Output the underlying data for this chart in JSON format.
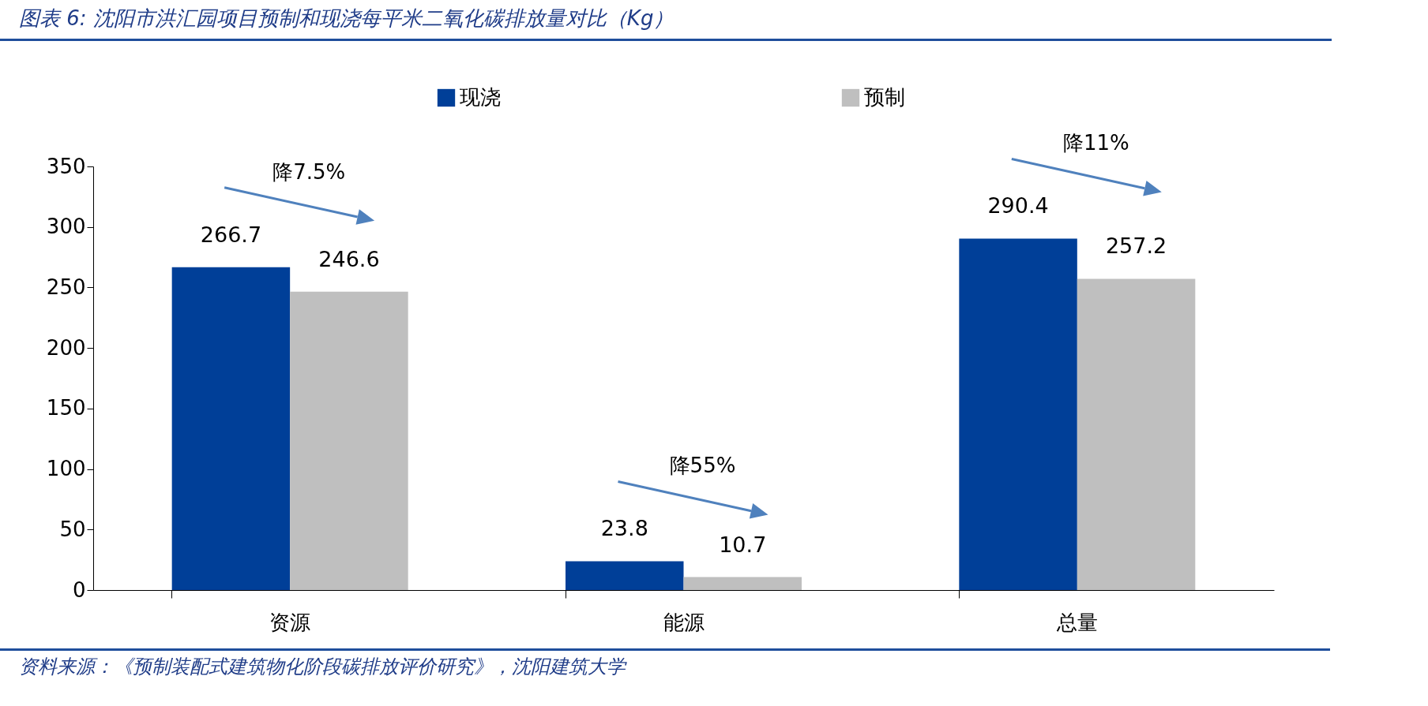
{
  "chart_data": {
    "type": "bar",
    "title": "图表 6:  沈阳市洪汇园项目预制和现浇每平米二氧化碳排放量对比（Kg）",
    "categories": [
      "资源",
      "能源",
      "总量"
    ],
    "series": [
      {
        "name": "现浇",
        "color": "#003f98",
        "values": [
          266.7,
          23.8,
          290.4
        ]
      },
      {
        "name": "预制",
        "color": "#bfbfbf",
        "values": [
          246.6,
          10.7,
          257.2
        ]
      }
    ],
    "ylim": [
      0,
      350
    ],
    "yticks": [
      0,
      50,
      100,
      150,
      200,
      250,
      300,
      350
    ],
    "grid": false,
    "legend": "top",
    "data_labels": true,
    "annotations": [
      "降7.5%",
      "降55%",
      "降11%",
      "资料来源：《预制装配式建筑物化阶段碳排放评价研究》，沈阳建筑大学"
    ]
  }
}
